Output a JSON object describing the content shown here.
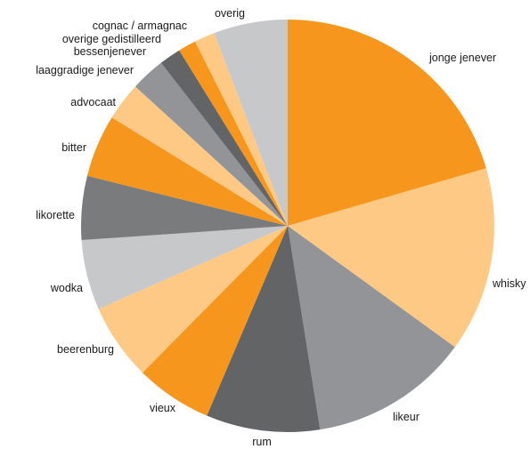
{
  "chart_data": {
    "type": "pie",
    "title": "",
    "start": "top",
    "direction": "clockwise",
    "legend": "none (labels placed around the pie)",
    "palette": {
      "orange": "#f7961d",
      "light_orange": "#fec985",
      "mid_gray": "#929497",
      "dark_gray": "#636466",
      "light_gray": "#c7c8ca"
    },
    "slices": [
      {
        "label": "jonge jenever",
        "value": 20.5,
        "color": "#f7961d"
      },
      {
        "label": "whisky",
        "value": 14.5,
        "color": "#fec985"
      },
      {
        "label": "likeur",
        "value": 12.5,
        "color": "#929497"
      },
      {
        "label": "rum",
        "value": 8.9,
        "color": "#636466"
      },
      {
        "label": "vieux",
        "value": 6.0,
        "color": "#f7961d"
      },
      {
        "label": "beerenburg",
        "value": 6.0,
        "color": "#fec985"
      },
      {
        "label": "wodka",
        "value": 5.5,
        "color": "#c7c8ca"
      },
      {
        "label": "likorette",
        "value": 5.0,
        "color": "#7a7b7d"
      },
      {
        "label": "bitter",
        "value": 4.9,
        "color": "#f7961d"
      },
      {
        "label": "advocaat",
        "value": 3.0,
        "color": "#fec985"
      },
      {
        "label": "laaggradige jenever",
        "value": 2.7,
        "color": "#929497"
      },
      {
        "label": "bessenjenever",
        "value": 1.7,
        "color": "#636466"
      },
      {
        "label": "overige gedistilleerd",
        "value": 1.4,
        "color": "#f7961d"
      },
      {
        "label": "cognac / armagnac",
        "value": 1.6,
        "color": "#fec985"
      },
      {
        "label": "overig",
        "value": 5.8,
        "color": "#c7c8ca"
      }
    ]
  }
}
